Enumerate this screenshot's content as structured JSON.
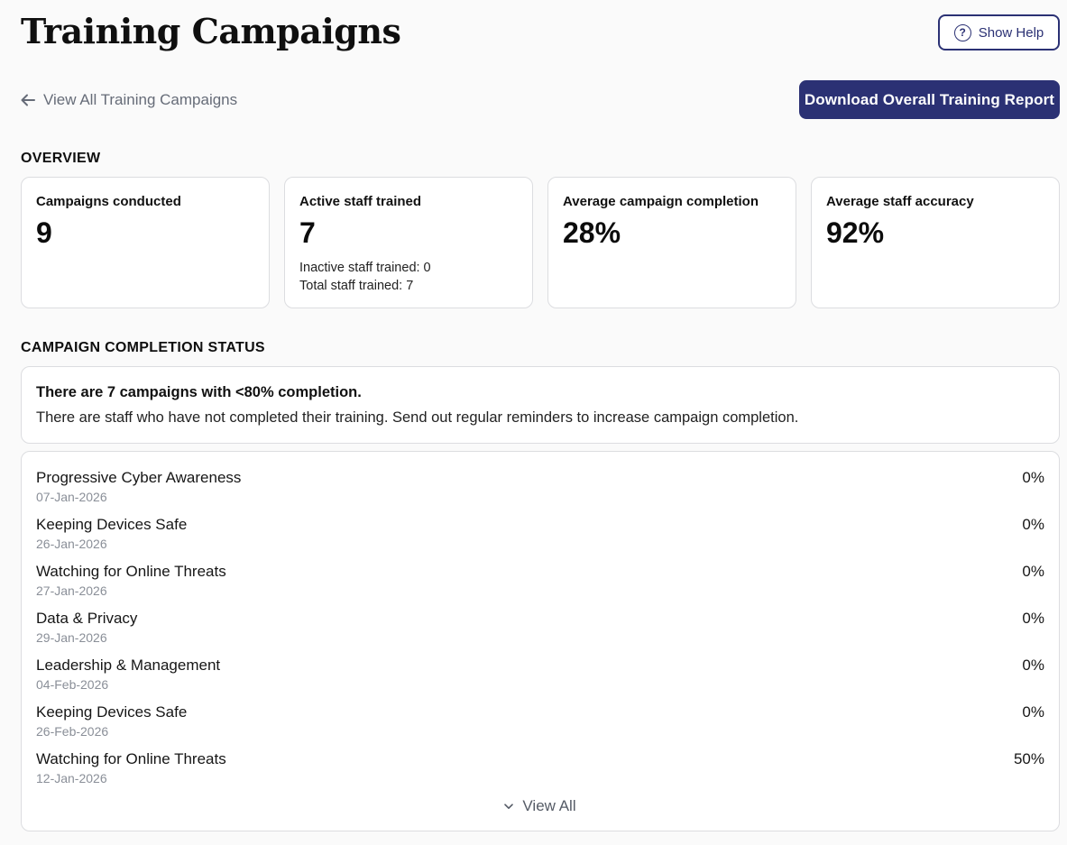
{
  "header": {
    "title": "Training Campaigns",
    "help_label": "Show Help"
  },
  "nav": {
    "back_label": "View All Training Campaigns",
    "download_label": "Download Overall Training Report"
  },
  "overview": {
    "heading": "OVERVIEW",
    "cards": [
      {
        "label": "Campaigns conducted",
        "value": "9"
      },
      {
        "label": "Active staff trained",
        "value": "7",
        "sub1": "Inactive staff trained: 0",
        "sub2": "Total staff trained: 7"
      },
      {
        "label": "Average campaign completion",
        "value": "28%"
      },
      {
        "label": "Average staff accuracy",
        "value": "92%"
      }
    ]
  },
  "completion": {
    "heading": "CAMPAIGN COMPLETION STATUS",
    "alert_title": "There are 7 campaigns with <80% completion.",
    "alert_text": "There are staff who have not completed their training. Send out regular reminders to increase campaign completion.",
    "campaigns": [
      {
        "name": "Progressive Cyber Awareness",
        "date": "07-Jan-2026",
        "pct": "0%"
      },
      {
        "name": "Keeping Devices Safe",
        "date": "26-Jan-2026",
        "pct": "0%"
      },
      {
        "name": "Watching for Online Threats",
        "date": "27-Jan-2026",
        "pct": "0%"
      },
      {
        "name": "Data & Privacy",
        "date": "29-Jan-2026",
        "pct": "0%"
      },
      {
        "name": "Leadership & Management",
        "date": "04-Feb-2026",
        "pct": "0%"
      },
      {
        "name": "Keeping Devices Safe",
        "date": "26-Feb-2026",
        "pct": "0%"
      },
      {
        "name": "Watching for Online Threats",
        "date": "12-Jan-2026",
        "pct": "50%"
      }
    ],
    "view_all_label": "View All"
  },
  "theme": {
    "primary": "#2b3174",
    "muted": "#8a8f98"
  }
}
